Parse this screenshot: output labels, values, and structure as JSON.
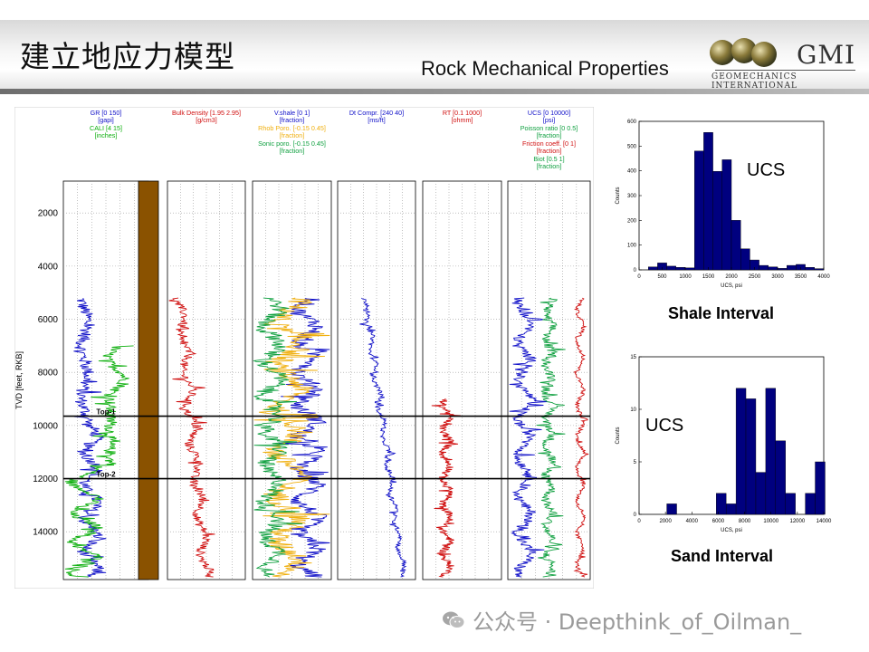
{
  "header": {
    "title": "建立地应力模型",
    "subtitle": "Rock Mechanical Properties",
    "logo_text": "GMI",
    "logo_subtitle": "GEOMECHANICS INTERNATIONAL"
  },
  "watermark": "公众号 · Deepthink_of_Oilman_",
  "chart_data": [
    {
      "type": "line",
      "kind": "well-log-tracks",
      "ylabel": "TVD [feet, RKB]",
      "yticks": [
        2000,
        4000,
        6000,
        8000,
        10000,
        12000,
        14000
      ],
      "ylim": [
        800,
        15800
      ],
      "formation_tops": [
        {
          "label": "Top-1",
          "depth": 9650
        },
        {
          "label": "Top-2",
          "depth": 12000
        }
      ],
      "tracks": [
        {
          "name": "gr-cali",
          "curves": [
            {
              "label": "GR [0  150]",
              "unit": "[gapi]",
              "color": "#1010c8"
            },
            {
              "label": "CALI [4  15]",
              "unit": "[inches]",
              "color": "#10b010"
            }
          ]
        },
        {
          "name": "lithology",
          "curves": []
        },
        {
          "name": "bulk-density",
          "curves": [
            {
              "label": "Bulk Density [1.95  2.95]",
              "unit": "[g/cm3]",
              "color": "#d01010"
            }
          ]
        },
        {
          "name": "porosity",
          "curves": [
            {
              "label": "V.shale [0  1]",
              "unit": "[fraction]",
              "color": "#1010c8"
            },
            {
              "label": "Rhob Poro. [-0.15  0.45]",
              "unit": "[fraction]",
              "color": "#f0b010"
            },
            {
              "label": "Sonic poro. [-0.15  0.45]",
              "unit": "[fraction]",
              "color": "#10a040"
            }
          ]
        },
        {
          "name": "dt-compr",
          "curves": [
            {
              "label": "Dt Compr. [240  40]",
              "unit": "[ms/ft]",
              "color": "#1010c8"
            }
          ]
        },
        {
          "name": "resistivity",
          "curves": [
            {
              "label": "RT [0.1  1000]",
              "unit": "[ohmm]",
              "color": "#d01010"
            }
          ]
        },
        {
          "name": "ucs-poisson",
          "curves": [
            {
              "label": "UCS [0  10000]",
              "unit": "[psi]",
              "color": "#1010c8"
            },
            {
              "label": "Poisson ratio [0  0.5]",
              "unit": "[fraction]",
              "color": "#10a040"
            },
            {
              "label": "Friction coeff. [0  1]",
              "unit": "[fraction]",
              "color": "#d01010"
            },
            {
              "label": "Biot [0.5  1]",
              "unit": "[fraction]",
              "color": "#10a040"
            }
          ]
        }
      ]
    },
    {
      "type": "bar",
      "kind": "histogram",
      "title": "UCS",
      "caption": "Shale Interval",
      "xlabel": "UCS, psi",
      "ylabel": "Counts",
      "xlim": [
        0,
        4000
      ],
      "ylim": [
        0,
        600
      ],
      "xticks": [
        0,
        500,
        1000,
        1500,
        2000,
        2500,
        3000,
        3500,
        4000
      ],
      "yticks": [
        0,
        100,
        200,
        300,
        400,
        500,
        600
      ],
      "bin_width": 200,
      "bin_starts": [
        200,
        400,
        600,
        800,
        1000,
        1200,
        1400,
        1600,
        1800,
        2000,
        2200,
        2400,
        2600,
        2800,
        3000,
        3200,
        3400,
        3600,
        3800
      ],
      "values": [
        12,
        28,
        15,
        10,
        8,
        480,
        555,
        398,
        445,
        200,
        85,
        40,
        18,
        12,
        6,
        18,
        22,
        10,
        5
      ]
    },
    {
      "type": "bar",
      "kind": "histogram",
      "title": "UCS",
      "caption": "Sand Interval",
      "xlabel": "UCS, psi",
      "ylabel": "Counts",
      "xlim": [
        0,
        14000
      ],
      "ylim": [
        0,
        15
      ],
      "xticks": [
        0,
        2000,
        4000,
        6000,
        8000,
        10000,
        12000,
        14000
      ],
      "yticks": [
        0,
        5,
        10,
        15
      ],
      "bin_width": 750,
      "bin_starts": [
        2100,
        2850,
        3600,
        4350,
        5100,
        5850,
        6600,
        7350,
        8100,
        8850,
        9600,
        10350,
        11100,
        11850,
        12600,
        13350
      ],
      "values": [
        1,
        0,
        0,
        0,
        0,
        2,
        1,
        12,
        11,
        4,
        12,
        7,
        2,
        0,
        2,
        5
      ]
    }
  ]
}
